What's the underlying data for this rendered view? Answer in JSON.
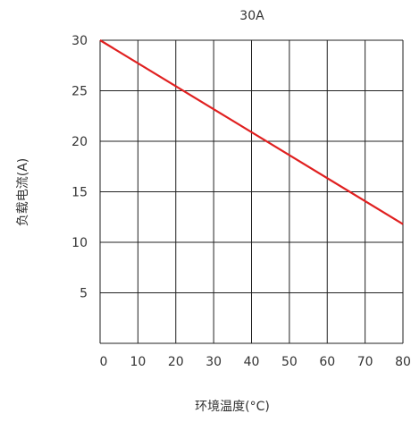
{
  "chart_data": {
    "type": "line",
    "title": "30A",
    "xlabel": "环境温度(°C)",
    "ylabel": "负载电流(A)",
    "xlim": [
      0,
      80
    ],
    "ylim": [
      0,
      30
    ],
    "x_ticks": [
      0,
      10,
      20,
      30,
      40,
      50,
      60,
      70,
      80
    ],
    "y_ticks": [
      5,
      10,
      15,
      20,
      25,
      30
    ],
    "grid": true,
    "series": [
      {
        "x": [
          0,
          80
        ],
        "y": [
          30,
          11.8
        ],
        "color": "#e02020"
      }
    ]
  }
}
